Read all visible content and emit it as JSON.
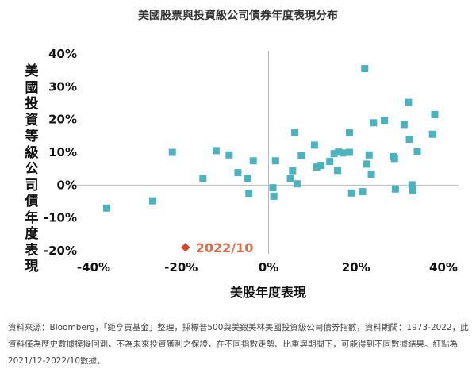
{
  "chart_data": {
    "type": "scatter",
    "title": "美國股票與投資級公司債券年度表現分布",
    "xlabel": "美股年度表現",
    "ylabel": "美國投資等級公司債年度表現",
    "xlim": [
      -0.4,
      0.4
    ],
    "ylim": [
      -0.2,
      0.4
    ],
    "x_ticks": [
      "-40%",
      "-20%",
      "0%",
      "20%",
      "40%"
    ],
    "y_ticks": [
      "40%",
      "30%",
      "20%",
      "10%",
      "0%",
      "-10%",
      "-20%"
    ],
    "grid": false,
    "series": [
      {
        "color": "#4bb3bf",
        "points": [
          {
            "x": -0.37,
            "y": -0.07
          },
          {
            "x": -0.265,
            "y": -0.048
          },
          {
            "x": -0.22,
            "y": 0.1
          },
          {
            "x": -0.15,
            "y": 0.02
          },
          {
            "x": -0.12,
            "y": 0.105
          },
          {
            "x": -0.09,
            "y": 0.092
          },
          {
            "x": -0.07,
            "y": 0.038
          },
          {
            "x": -0.048,
            "y": 0.021
          },
          {
            "x": -0.045,
            "y": -0.025
          },
          {
            "x": -0.035,
            "y": 0.074
          },
          {
            "x": 0.01,
            "y": -0.008
          },
          {
            "x": 0.012,
            "y": -0.034
          },
          {
            "x": 0.016,
            "y": 0.074
          },
          {
            "x": 0.05,
            "y": 0.02
          },
          {
            "x": 0.055,
            "y": 0.044
          },
          {
            "x": 0.06,
            "y": 0.16
          },
          {
            "x": 0.065,
            "y": 0.004
          },
          {
            "x": 0.075,
            "y": 0.09
          },
          {
            "x": 0.105,
            "y": 0.122
          },
          {
            "x": 0.11,
            "y": 0.055
          },
          {
            "x": 0.12,
            "y": 0.06
          },
          {
            "x": 0.14,
            "y": 0.072
          },
          {
            "x": 0.15,
            "y": 0.096
          },
          {
            "x": 0.16,
            "y": 0.101
          },
          {
            "x": 0.158,
            "y": 0.045
          },
          {
            "x": 0.17,
            "y": 0.098
          },
          {
            "x": 0.185,
            "y": 0.16
          },
          {
            "x": 0.185,
            "y": 0.1
          },
          {
            "x": 0.19,
            "y": -0.024
          },
          {
            "x": 0.215,
            "y": -0.02
          },
          {
            "x": 0.22,
            "y": 0.355
          },
          {
            "x": 0.225,
            "y": 0.064
          },
          {
            "x": 0.23,
            "y": 0.092
          },
          {
            "x": 0.235,
            "y": 0.033
          },
          {
            "x": 0.24,
            "y": 0.19
          },
          {
            "x": 0.265,
            "y": 0.198
          },
          {
            "x": 0.285,
            "y": 0.087
          },
          {
            "x": 0.288,
            "y": 0.081
          },
          {
            "x": 0.29,
            "y": -0.012
          },
          {
            "x": 0.31,
            "y": 0.185
          },
          {
            "x": 0.32,
            "y": 0.252
          },
          {
            "x": 0.322,
            "y": 0.14
          },
          {
            "x": 0.328,
            "y": 0.001
          },
          {
            "x": 0.33,
            "y": -0.015
          },
          {
            "x": 0.34,
            "y": 0.103
          },
          {
            "x": 0.375,
            "y": 0.155
          },
          {
            "x": 0.38,
            "y": 0.215
          }
        ]
      }
    ],
    "highlight": {
      "label": "2022/10",
      "x": -0.19,
      "y": -0.19,
      "color": "#d9472b"
    },
    "annotation_color": "#e06a4a",
    "axis_line_color": "#bbbbbb"
  },
  "source_note": "資料來源：Bloomberg，「鉅亨買基金」整理，採標普500與美銀美林美國投資級公司債券指數，資料期間：1973-2022，此資料僅為歷史數據模擬回測，不為未來投資獲利之保證，在不同指數走勢、比重與期間下，可能得到不同數據結果。紅點為2021/12-2022/10數據。"
}
